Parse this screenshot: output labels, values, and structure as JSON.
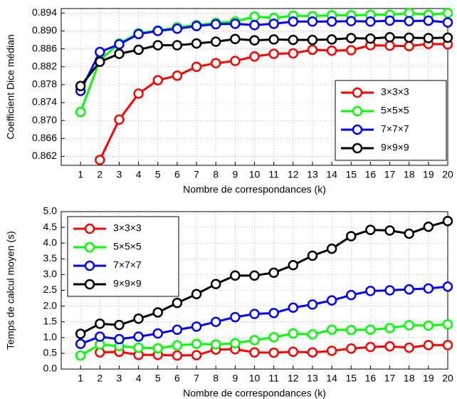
{
  "chart_data": [
    {
      "type": "line",
      "xlabel": "Nombre de correspondances (k)",
      "ylabel": "Coefficient Dice médian",
      "x": [
        1,
        2,
        3,
        4,
        5,
        6,
        7,
        8,
        9,
        10,
        11,
        12,
        13,
        14,
        15,
        16,
        17,
        18,
        19,
        20
      ],
      "xlim": [
        0,
        20
      ],
      "xticks": [
        1,
        2,
        3,
        4,
        5,
        6,
        7,
        8,
        9,
        10,
        11,
        12,
        13,
        14,
        15,
        16,
        17,
        18,
        19,
        20
      ],
      "ylim": [
        0.86,
        0.895
      ],
      "yticks": [
        0.862,
        0.866,
        {
          "value": 0.87,
          "label": "0.870"
        },
        0.874,
        0.878,
        0.882,
        0.886,
        {
          "value": 0.89,
          "label": "0.890"
        },
        0.894
      ],
      "grid": true,
      "legend_loc": "lower right",
      "series": [
        {
          "name": "3×3×3",
          "color": "#ff0000",
          "values": [
            null,
            0.8612,
            0.8702,
            0.876,
            0.879,
            0.88,
            0.882,
            0.8828,
            0.8833,
            0.8843,
            0.8849,
            0.885,
            0.8858,
            0.8856,
            0.8857,
            0.8868,
            0.8867,
            0.8866,
            0.8871,
            0.887
          ]
        },
        {
          "name": "5×5×5",
          "color": "#00ff00",
          "values": [
            0.8719,
            0.8835,
            0.8872,
            0.8895,
            0.8901,
            0.8908,
            0.8913,
            0.8918,
            0.8921,
            0.8932,
            0.8929,
            0.8934,
            0.8933,
            0.8935,
            0.8935,
            0.8936,
            0.8936,
            0.894,
            0.8936,
            0.894
          ]
        },
        {
          "name": "7×7×7",
          "color": "#0000ff",
          "values": [
            0.8766,
            0.8853,
            0.887,
            0.8893,
            0.89,
            0.8905,
            0.8911,
            0.8915,
            0.8916,
            0.8913,
            0.8916,
            0.8921,
            0.8921,
            0.8921,
            0.8922,
            0.8921,
            0.8923,
            0.8922,
            0.8923,
            0.8919
          ]
        },
        {
          "name": "9×9×9",
          "color": "#000000",
          "values": [
            0.8777,
            0.8831,
            0.8849,
            0.8858,
            0.8868,
            0.8868,
            0.8872,
            0.8876,
            0.8882,
            0.8879,
            0.8881,
            0.888,
            0.888,
            0.8881,
            0.8884,
            0.8883,
            0.8886,
            0.8885,
            0.8884,
            0.8885
          ]
        }
      ]
    },
    {
      "type": "line",
      "xlabel": "Nombre de correspondances (k)",
      "ylabel": "Temps de calcul moyen (s)",
      "x": [
        1,
        2,
        3,
        4,
        5,
        6,
        7,
        8,
        9,
        10,
        11,
        12,
        13,
        14,
        15,
        16,
        17,
        18,
        19,
        20
      ],
      "xlim": [
        0,
        20
      ],
      "xticks": [
        1,
        2,
        3,
        4,
        5,
        6,
        7,
        8,
        9,
        10,
        11,
        12,
        13,
        14,
        15,
        16,
        17,
        18,
        19,
        20
      ],
      "ylim": [
        0,
        5
      ],
      "yticks": [
        {
          "value": 0,
          "label": "0.0"
        },
        0.5,
        {
          "value": 1,
          "label": "1.0"
        },
        1.5,
        {
          "value": 2,
          "label": "2.0"
        },
        2.5,
        {
          "value": 3,
          "label": "3.0"
        },
        3.5,
        {
          "value": 4,
          "label": "4.0"
        },
        4.5,
        {
          "value": 5,
          "label": "5.0"
        }
      ],
      "grid": true,
      "legend_loc": "upper left",
      "series": [
        {
          "name": "3×3×3",
          "color": "#ff0000",
          "values": [
            null,
            0.53,
            0.55,
            0.45,
            0.45,
            0.43,
            0.44,
            0.62,
            0.63,
            0.53,
            0.52,
            0.55,
            0.53,
            0.58,
            0.65,
            0.7,
            0.72,
            0.68,
            0.76,
            0.76
          ]
        },
        {
          "name": "5×5×5",
          "color": "#00ff00",
          "values": [
            0.43,
            0.78,
            0.73,
            0.68,
            0.66,
            0.75,
            0.8,
            0.78,
            0.82,
            0.92,
            1.01,
            1.13,
            1.1,
            1.25,
            1.24,
            1.25,
            1.3,
            1.39,
            1.38,
            1.42
          ]
        },
        {
          "name": "7×7×7",
          "color": "#0000ff",
          "values": [
            0.8,
            1.03,
            0.95,
            1.03,
            1.13,
            1.25,
            1.35,
            1.5,
            1.65,
            1.75,
            1.78,
            1.95,
            2.05,
            2.18,
            2.35,
            2.48,
            2.5,
            2.53,
            2.56,
            2.62
          ]
        },
        {
          "name": "9×9×9",
          "color": "#000000",
          "values": [
            1.12,
            1.44,
            1.4,
            1.6,
            1.8,
            2.1,
            2.38,
            2.7,
            2.97,
            2.97,
            3.06,
            3.3,
            3.6,
            3.82,
            4.22,
            4.42,
            4.4,
            4.3,
            4.52,
            4.7
          ]
        }
      ]
    }
  ]
}
